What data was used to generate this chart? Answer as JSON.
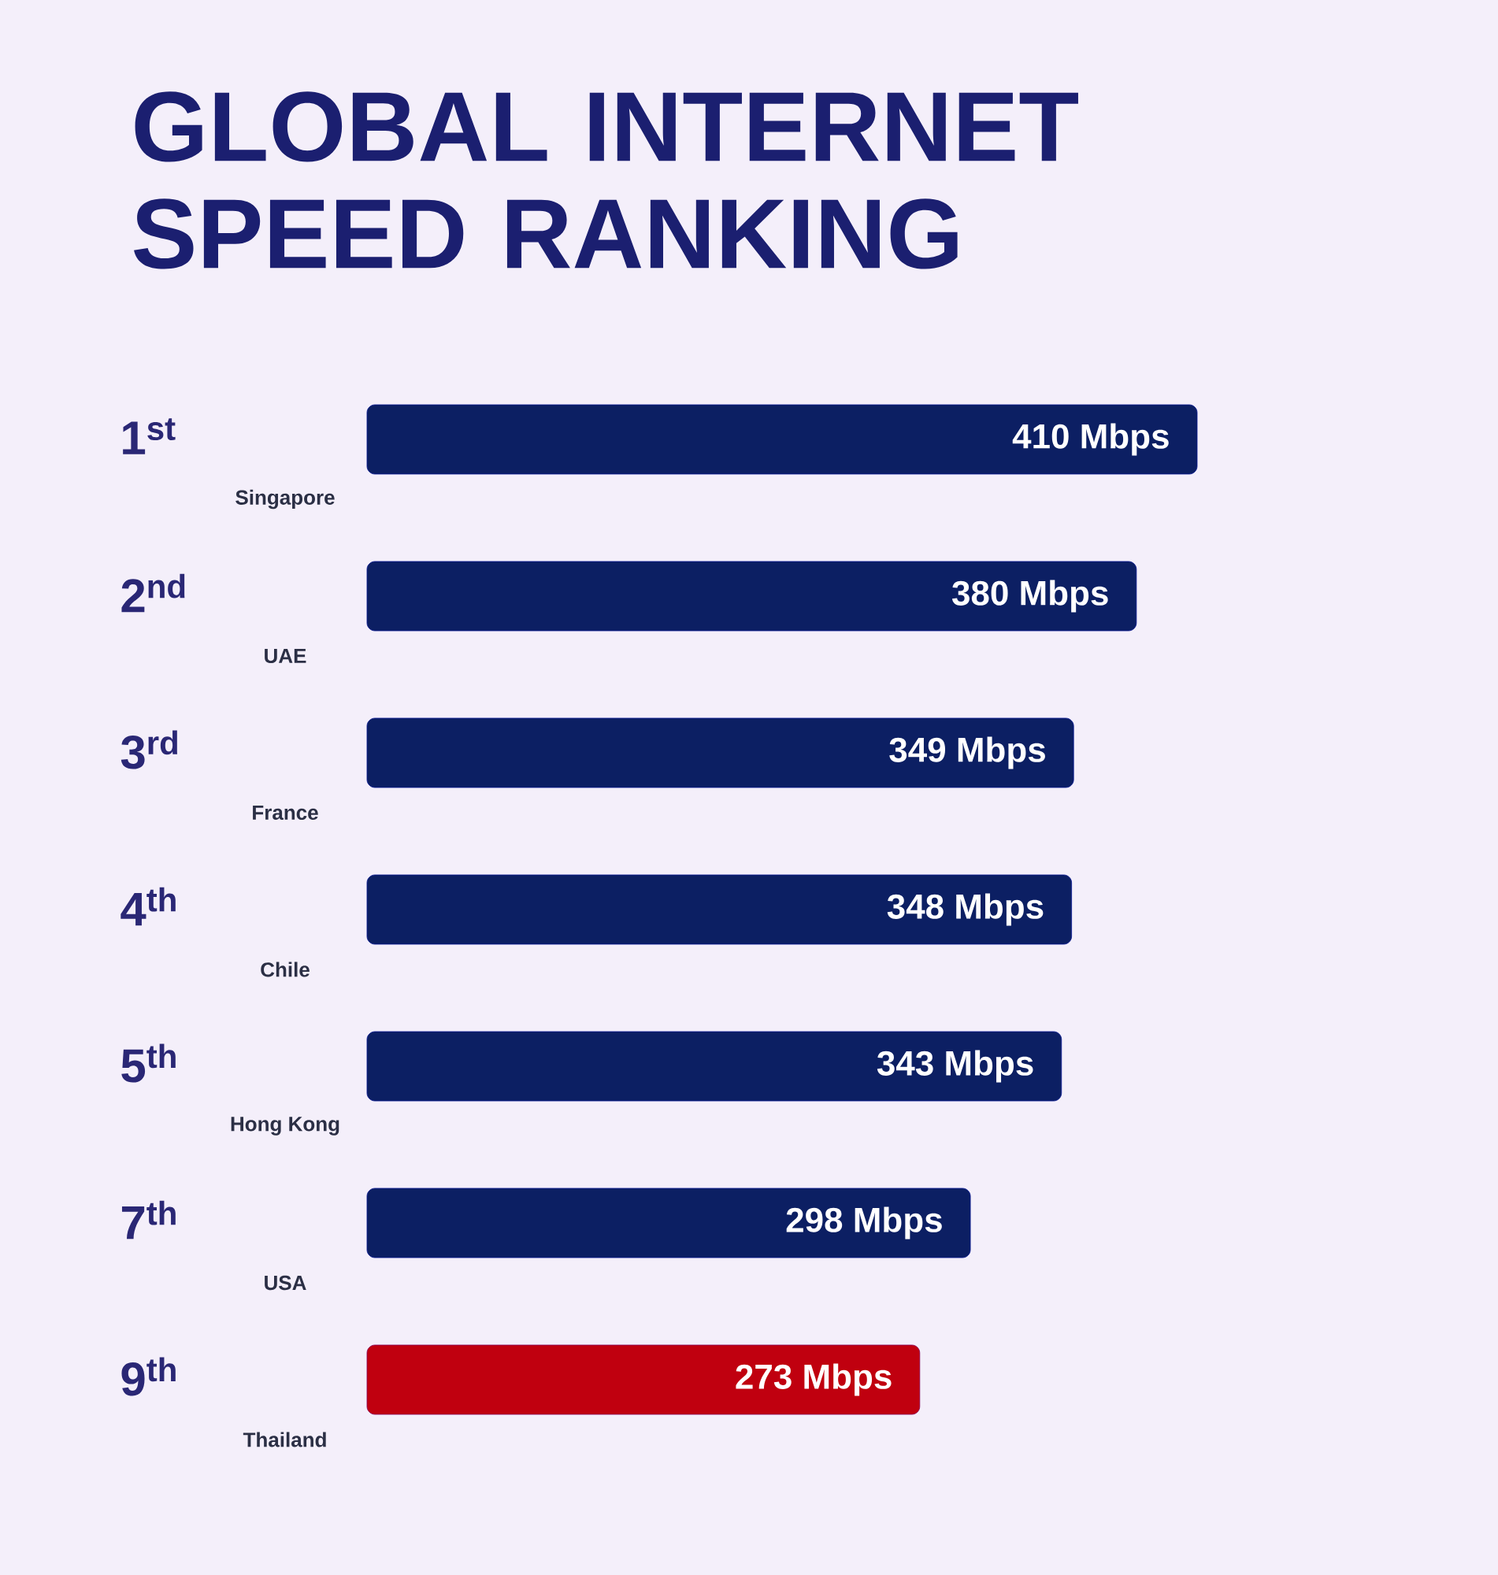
{
  "chart_data": {
    "type": "bar",
    "orientation": "horizontal",
    "title": "GLOBAL INTERNET SPEED RANKING",
    "categories": [
      "Singapore",
      "UAE",
      "France",
      "Chile",
      "Hong Kong",
      "USA",
      "Thailand"
    ],
    "values": [
      410,
      380,
      349,
      348,
      343,
      298,
      273
    ],
    "value_labels": [
      "410 Mbps",
      "380 Mbps",
      "349 Mbps",
      "348 Mbps",
      "343 Mbps",
      "298 Mbps",
      "273 Mbps"
    ],
    "colors": [
      "#0c1f63",
      "#0c1f63",
      "#0c1f63",
      "#0c1f63",
      "#0c1f63",
      "#0c1f63",
      "#c0000f"
    ],
    "annotations": [
      "1$^{st}$",
      "2$^{nd}$",
      "3$^{rd}$",
      "4$^{th}$",
      "5$^{th}$",
      "7$^{th}$",
      "9$^{th}$"
    ]
  }
}
